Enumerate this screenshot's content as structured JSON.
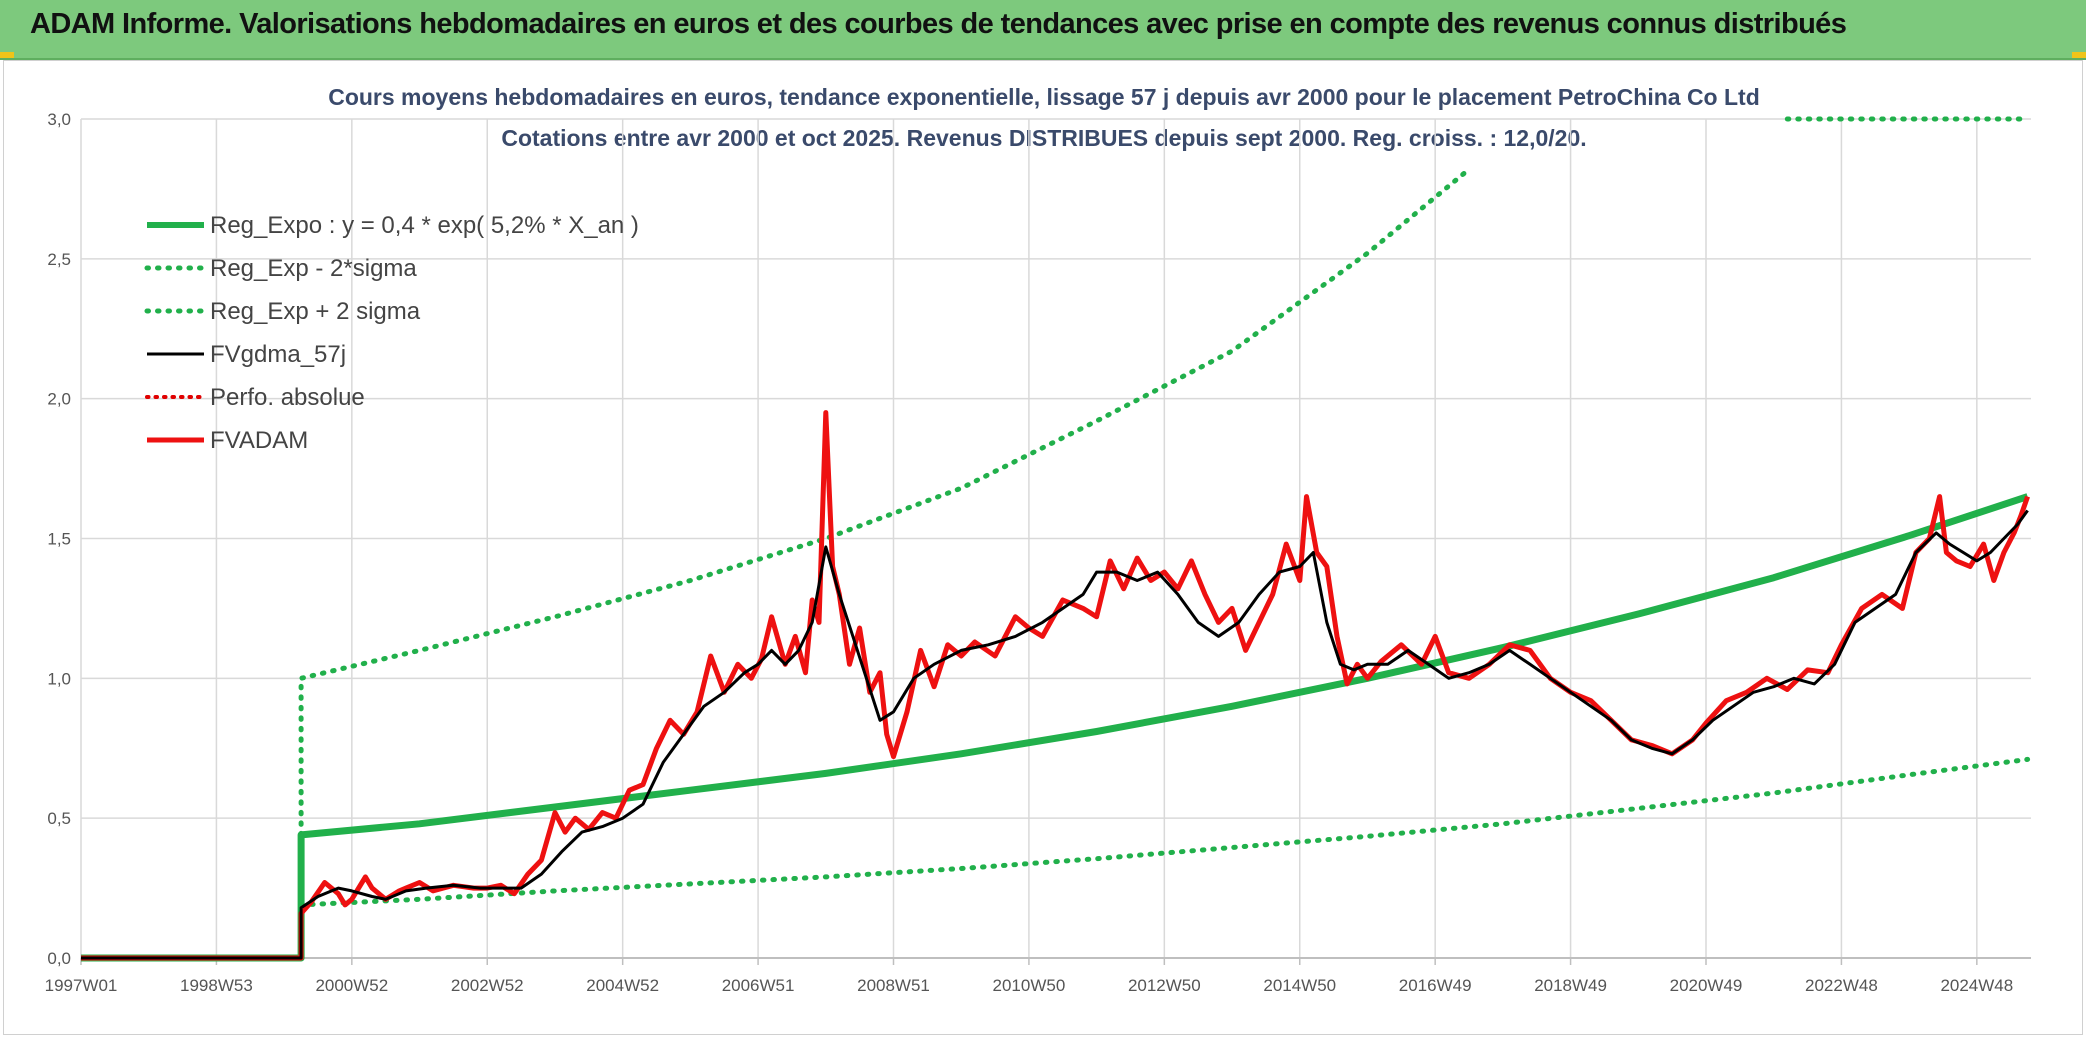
{
  "header": {
    "title": "ADAM Informe. Valorisations hebdomadaires en euros et des courbes de tendances avec prise en compte des revenus connus distribués"
  },
  "chart_data": {
    "type": "line",
    "title": "Cours moyens hebdomadaires en euros, tendance exponentielle, lissage 57 j depuis avr 2000 pour le placement PetroChina Co Ltd",
    "subtitle": "Cotations entre avr 2000 et oct 2025. Revenus DISTRIBUES depuis sept 2000. Reg. croiss. : 12,0/20.",
    "xlabel": "",
    "ylabel": "",
    "x_range": [
      1997.0,
      2025.8
    ],
    "ylim": [
      0,
      3.0
    ],
    "y_ticks": [
      "0,0",
      "0,5",
      "1,0",
      "1,5",
      "2,0",
      "2,5",
      "3,0"
    ],
    "y_tick_values": [
      0,
      0.5,
      1.0,
      1.5,
      2.0,
      2.5,
      3.0
    ],
    "x_ticks": [
      {
        "label": "1997W01",
        "x": 1997.0
      },
      {
        "label": "1998W53",
        "x": 1999.0
      },
      {
        "label": "2000W52",
        "x": 2001.0
      },
      {
        "label": "2002W52",
        "x": 2003.0
      },
      {
        "label": "2004W52",
        "x": 2005.0
      },
      {
        "label": "2006W51",
        "x": 2007.0
      },
      {
        "label": "2008W51",
        "x": 2009.0
      },
      {
        "label": "2010W50",
        "x": 2011.0
      },
      {
        "label": "2012W50",
        "x": 2013.0
      },
      {
        "label": "2014W50",
        "x": 2015.0
      },
      {
        "label": "2016W49",
        "x": 2017.0
      },
      {
        "label": "2018W49",
        "x": 2019.0
      },
      {
        "label": "2020W49",
        "x": 2021.0
      },
      {
        "label": "2022W48",
        "x": 2023.0
      },
      {
        "label": "2024W48",
        "x": 2025.0
      }
    ],
    "grid": true,
    "legend_position": "top-left",
    "colors": {
      "reg_expo": "#21b04b",
      "sigma": "#21b04b",
      "gdma": "#000000",
      "perfo": "#e00000",
      "fvadam": "#ee1111",
      "grid": "#d9d9d9",
      "axis": "#bfbfbf"
    },
    "series": [
      {
        "name": "Reg_Expo : y = 0,4 * exp( 5,2% *  X_an )",
        "style": "solid-thick",
        "x": [
          1997.0,
          2000.25,
          2000.25,
          2002.0,
          2004.0,
          2006.0,
          2008.0,
          2010.0,
          2012.0,
          2014.0,
          2016.0,
          2018.0,
          2020.0,
          2022.0,
          2024.0,
          2025.75
        ],
        "values": [
          0,
          0,
          0.44,
          0.48,
          0.54,
          0.6,
          0.66,
          0.73,
          0.81,
          0.9,
          1.0,
          1.11,
          1.23,
          1.36,
          1.51,
          1.65
        ]
      },
      {
        "name": "Reg_Exp - 2*sigma",
        "style": "dotted",
        "x": [
          2000.25,
          2002.0,
          2004.0,
          2006.0,
          2008.0,
          2010.0,
          2012.0,
          2014.0,
          2016.0,
          2018.0,
          2020.0,
          2022.0,
          2024.0,
          2025.75
        ],
        "values": [
          0.19,
          0.21,
          0.24,
          0.265,
          0.29,
          0.32,
          0.355,
          0.395,
          0.435,
          0.48,
          0.535,
          0.59,
          0.655,
          0.71
        ]
      },
      {
        "name": "Reg_Exp + 2 sigma",
        "style": "dotted",
        "x": [
          2000.25,
          2000.25,
          2002.0,
          2004.0,
          2006.0,
          2008.0,
          2010.0,
          2012.0,
          2014.0,
          2016.0,
          2017.5
        ],
        "values": [
          0.44,
          1.0,
          1.1,
          1.22,
          1.35,
          1.5,
          1.68,
          1.92,
          2.17,
          2.52,
          2.82
        ]
      },
      {
        "name": "Reg_Exp + 2 sigma",
        "style": "dotted",
        "x": [
          2022.2,
          2025.75
        ],
        "values": [
          3.0,
          3.0
        ]
      },
      {
        "name": "FVgdma_57j",
        "style": "solid-thin",
        "x": [
          1997.0,
          2000.25,
          2000.25,
          2000.5,
          2000.8,
          2001.0,
          2001.3,
          2001.5,
          2001.8,
          2002.1,
          2002.5,
          2002.9,
          2003.2,
          2003.5,
          2003.8,
          2004.1,
          2004.4,
          2004.7,
          2005.0,
          2005.3,
          2005.6,
          2005.9,
          2006.2,
          2006.5,
          2006.8,
          2007.0,
          2007.2,
          2007.4,
          2007.6,
          2007.8,
          2008.0,
          2008.2,
          2008.4,
          2008.6,
          2008.8,
          2009.0,
          2009.3,
          2009.6,
          2010.0,
          2010.4,
          2010.8,
          2011.2,
          2011.5,
          2011.8,
          2012.0,
          2012.3,
          2012.6,
          2012.9,
          2013.2,
          2013.5,
          2013.8,
          2014.1,
          2014.4,
          2014.7,
          2015.0,
          2015.2,
          2015.4,
          2015.6,
          2015.8,
          2016.0,
          2016.3,
          2016.6,
          2016.9,
          2017.2,
          2017.5,
          2017.8,
          2018.1,
          2018.4,
          2018.7,
          2019.0,
          2019.3,
          2019.6,
          2019.9,
          2020.2,
          2020.5,
          2020.8,
          2021.1,
          2021.4,
          2021.7,
          2022.0,
          2022.3,
          2022.6,
          2022.9,
          2023.2,
          2023.5,
          2023.8,
          2024.1,
          2024.4,
          2024.6,
          2024.8,
          2025.0,
          2025.2,
          2025.4,
          2025.6,
          2025.75
        ],
        "values": [
          0,
          0,
          0.18,
          0.22,
          0.25,
          0.24,
          0.22,
          0.21,
          0.24,
          0.25,
          0.26,
          0.25,
          0.25,
          0.25,
          0.3,
          0.38,
          0.45,
          0.47,
          0.5,
          0.55,
          0.7,
          0.8,
          0.9,
          0.95,
          1.02,
          1.05,
          1.1,
          1.05,
          1.1,
          1.2,
          1.47,
          1.3,
          1.15,
          1.0,
          0.85,
          0.88,
          1.0,
          1.05,
          1.1,
          1.12,
          1.15,
          1.2,
          1.25,
          1.3,
          1.38,
          1.38,
          1.35,
          1.38,
          1.3,
          1.2,
          1.15,
          1.2,
          1.3,
          1.38,
          1.4,
          1.45,
          1.2,
          1.05,
          1.03,
          1.05,
          1.05,
          1.1,
          1.05,
          1.0,
          1.02,
          1.05,
          1.1,
          1.05,
          1.0,
          0.95,
          0.9,
          0.85,
          0.78,
          0.75,
          0.73,
          0.78,
          0.85,
          0.9,
          0.95,
          0.97,
          1.0,
          0.98,
          1.05,
          1.2,
          1.25,
          1.3,
          1.45,
          1.52,
          1.48,
          1.45,
          1.42,
          1.45,
          1.5,
          1.55,
          1.6
        ]
      },
      {
        "name": "Perfo. absolue",
        "style": "dotted-red",
        "x": [],
        "values": []
      },
      {
        "name": "FVADAM",
        "style": "solid-red",
        "x": [
          1997.0,
          2000.25,
          2000.25,
          2000.4,
          2000.6,
          2000.8,
          2000.9,
          2001.0,
          2001.2,
          2001.3,
          2001.5,
          2001.7,
          2001.8,
          2002.0,
          2002.2,
          2002.5,
          2002.8,
          2003.0,
          2003.2,
          2003.4,
          2003.6,
          2003.8,
          2004.0,
          2004.15,
          2004.3,
          2004.5,
          2004.7,
          2004.9,
          2005.1,
          2005.3,
          2005.5,
          2005.7,
          2005.9,
          2006.1,
          2006.3,
          2006.5,
          2006.7,
          2006.9,
          2007.05,
          2007.2,
          2007.4,
          2007.55,
          2007.7,
          2007.8,
          2007.9,
          2008.0,
          2008.1,
          2008.2,
          2008.35,
          2008.5,
          2008.65,
          2008.8,
          2008.9,
          2009.0,
          2009.2,
          2009.4,
          2009.6,
          2009.8,
          2010.0,
          2010.2,
          2010.5,
          2010.8,
          2011.0,
          2011.2,
          2011.5,
          2011.8,
          2012.0,
          2012.2,
          2012.4,
          2012.6,
          2012.8,
          2013.0,
          2013.2,
          2013.4,
          2013.6,
          2013.8,
          2014.0,
          2014.2,
          2014.4,
          2014.6,
          2014.8,
          2015.0,
          2015.1,
          2015.25,
          2015.4,
          2015.55,
          2015.7,
          2015.85,
          2016.0,
          2016.2,
          2016.5,
          2016.8,
          2017.0,
          2017.2,
          2017.5,
          2017.8,
          2018.1,
          2018.4,
          2018.7,
          2019.0,
          2019.3,
          2019.6,
          2019.9,
          2020.2,
          2020.5,
          2020.8,
          2021.0,
          2021.3,
          2021.6,
          2021.9,
          2022.2,
          2022.5,
          2022.8,
          2023.0,
          2023.3,
          2023.6,
          2023.9,
          2024.1,
          2024.3,
          2024.45,
          2024.55,
          2024.7,
          2024.9,
          2025.1,
          2025.25,
          2025.4,
          2025.55,
          2025.65,
          2025.75
        ],
        "values": [
          0,
          0,
          0.16,
          0.2,
          0.27,
          0.23,
          0.19,
          0.21,
          0.29,
          0.25,
          0.21,
          0.24,
          0.25,
          0.27,
          0.24,
          0.26,
          0.25,
          0.25,
          0.26,
          0.23,
          0.3,
          0.35,
          0.52,
          0.45,
          0.5,
          0.46,
          0.52,
          0.5,
          0.6,
          0.62,
          0.75,
          0.85,
          0.8,
          0.88,
          1.08,
          0.95,
          1.05,
          1.0,
          1.07,
          1.22,
          1.05,
          1.15,
          1.02,
          1.28,
          1.2,
          1.95,
          1.4,
          1.3,
          1.05,
          1.18,
          0.95,
          1.02,
          0.8,
          0.72,
          0.88,
          1.1,
          0.97,
          1.12,
          1.08,
          1.13,
          1.08,
          1.22,
          1.18,
          1.15,
          1.28,
          1.25,
          1.22,
          1.42,
          1.32,
          1.43,
          1.35,
          1.38,
          1.32,
          1.42,
          1.3,
          1.2,
          1.25,
          1.1,
          1.2,
          1.3,
          1.48,
          1.35,
          1.65,
          1.45,
          1.4,
          1.15,
          0.98,
          1.05,
          1.0,
          1.06,
          1.12,
          1.05,
          1.15,
          1.02,
          1.0,
          1.05,
          1.12,
          1.1,
          1.0,
          0.95,
          0.92,
          0.85,
          0.78,
          0.76,
          0.73,
          0.78,
          0.84,
          0.92,
          0.95,
          1.0,
          0.96,
          1.03,
          1.02,
          1.12,
          1.25,
          1.3,
          1.25,
          1.45,
          1.5,
          1.65,
          1.45,
          1.42,
          1.4,
          1.48,
          1.35,
          1.45,
          1.52,
          1.58,
          1.65
        ]
      }
    ]
  }
}
